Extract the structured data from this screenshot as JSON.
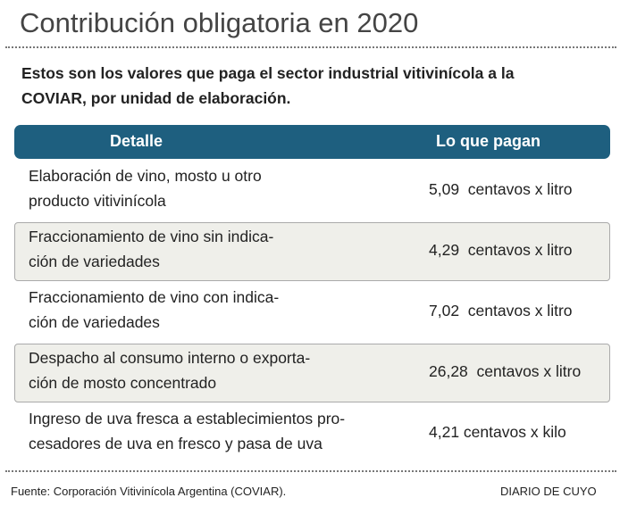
{
  "header": {
    "title": "Contribución obligatoria en 2020",
    "subtitle": [
      "Estos son los valores que paga el sector industrial vitivinícola a la",
      "COVIAR, por unidad de elaboración."
    ]
  },
  "table": {
    "columns": [
      "Detalle",
      "Lo que pagan"
    ],
    "rows": [
      [
        [
          "Elaboración de vino, mosto u otro",
          "producto vitivinícola"
        ],
        "5,09  centavos x litro"
      ],
      [
        [
          "Fraccionamiento de vino sin indica-",
          "ción de variedades"
        ],
        "4,29  centavos x litro"
      ],
      [
        [
          "Fraccionamiento de vino con indica-",
          "ción de variedades"
        ],
        "7,02  centavos x litro"
      ],
      [
        [
          "Despacho al consumo interno o exporta-",
          "ción de mosto concentrado"
        ],
        "26,28  centavos x litro"
      ],
      [
        [
          "Ingreso de uva fresca a establecimientos pro-",
          "cesadores de uva en fresco y pasa de uva"
        ],
        "4,21 centavos x kilo"
      ]
    ]
  },
  "footer": {
    "source": "Fuente: Corporación Vitivinícola Argentina (COVIAR).",
    "credit": "DIARIO DE CUYO"
  }
}
